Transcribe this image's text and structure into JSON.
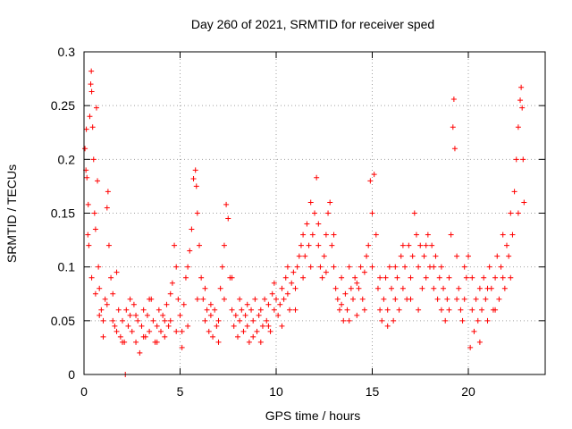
{
  "chart_data": {
    "type": "scatter",
    "title": "Day 260 of 2021, SRMTID for receiver sped",
    "xlabel": "GPS time / hours",
    "ylabel": "SRMTID / TECUs",
    "xlim": [
      0,
      24
    ],
    "ylim": [
      0,
      0.3
    ],
    "x_ticks": [
      0,
      5,
      10,
      15,
      20
    ],
    "x_tick_labels": [
      "0",
      "5",
      "10",
      "15",
      "20"
    ],
    "y_ticks": [
      0,
      0.05,
      0.1,
      0.15,
      0.2,
      0.25,
      0.3
    ],
    "y_tick_labels": [
      "0",
      "0.05",
      "0.1",
      "0.15",
      "0.2",
      "0.25",
      "0.3"
    ],
    "grid": true,
    "marker": "+",
    "series": [
      {
        "name": "SRMTID",
        "color": "#ff0000",
        "points": [
          [
            0.05,
            0.21
          ],
          [
            0.1,
            0.19
          ],
          [
            0.12,
            0.228
          ],
          [
            0.15,
            0.183
          ],
          [
            0.2,
            0.13
          ],
          [
            0.22,
            0.158
          ],
          [
            0.25,
            0.12
          ],
          [
            0.3,
            0.24
          ],
          [
            0.35,
            0.27
          ],
          [
            0.38,
            0.282
          ],
          [
            0.4,
            0.263
          ],
          [
            0.45,
            0.23
          ],
          [
            0.5,
            0.2
          ],
          [
            0.55,
            0.15
          ],
          [
            0.6,
            0.135
          ],
          [
            0.65,
            0.248
          ],
          [
            0.7,
            0.18
          ],
          [
            0.75,
            0.1
          ],
          [
            0.8,
            0.08
          ],
          [
            0.9,
            0.06
          ],
          [
            1.0,
            0.05
          ],
          [
            1.1,
            0.07
          ],
          [
            1.2,
            0.155
          ],
          [
            1.25,
            0.17
          ],
          [
            1.3,
            0.12
          ],
          [
            1.4,
            0.09
          ],
          [
            1.5,
            0.05
          ],
          [
            1.6,
            0.045
          ],
          [
            1.7,
            0.04
          ],
          [
            1.8,
            0.06
          ],
          [
            1.9,
            0.035
          ],
          [
            2.0,
            0.05
          ],
          [
            2.1,
            0.03
          ],
          [
            2.2,
            0.06
          ],
          [
            2.3,
            0.045
          ],
          [
            2.4,
            0.055
          ],
          [
            2.5,
            0.04
          ],
          [
            2.6,
            0.065
          ],
          [
            2.7,
            0.03
          ],
          [
            2.8,
            0.05
          ],
          [
            2.9,
            0.02
          ],
          [
            3.0,
            0.045
          ],
          [
            3.1,
            0.06
          ],
          [
            3.2,
            0.035
          ],
          [
            3.3,
            0.055
          ],
          [
            3.4,
            0.04
          ],
          [
            3.5,
            0.07
          ],
          [
            3.6,
            0.05
          ],
          [
            3.7,
            0.03
          ],
          [
            3.8,
            0.045
          ],
          [
            3.9,
            0.06
          ],
          [
            4.0,
            0.04
          ],
          [
            4.1,
            0.055
          ],
          [
            4.2,
            0.035
          ],
          [
            4.3,
            0.065
          ],
          [
            4.4,
            0.045
          ],
          [
            4.5,
            0.05
          ],
          [
            4.6,
            0.085
          ],
          [
            4.7,
            0.12
          ],
          [
            4.8,
            0.1
          ],
          [
            4.9,
            0.07
          ],
          [
            5.0,
            0.055
          ],
          [
            5.1,
            0.04
          ],
          [
            5.2,
            0.065
          ],
          [
            5.3,
            0.09
          ],
          [
            5.4,
            0.1
          ],
          [
            5.5,
            0.115
          ],
          [
            5.6,
            0.135
          ],
          [
            5.7,
            0.182
          ],
          [
            5.8,
            0.19
          ],
          [
            5.85,
            0.175
          ],
          [
            5.9,
            0.15
          ],
          [
            6.0,
            0.12
          ],
          [
            6.1,
            0.09
          ],
          [
            6.2,
            0.07
          ],
          [
            6.3,
            0.05
          ],
          [
            6.4,
            0.06
          ],
          [
            6.5,
            0.04
          ],
          [
            6.6,
            0.055
          ],
          [
            6.7,
            0.035
          ],
          [
            6.8,
            0.06
          ],
          [
            6.9,
            0.045
          ],
          [
            7.0,
            0.05
          ],
          [
            7.1,
            0.08
          ],
          [
            7.2,
            0.1
          ],
          [
            7.3,
            0.12
          ],
          [
            7.4,
            0.158
          ],
          [
            7.5,
            0.145
          ],
          [
            7.6,
            0.09
          ],
          [
            7.7,
            0.06
          ],
          [
            7.8,
            0.045
          ],
          [
            7.9,
            0.055
          ],
          [
            8.0,
            0.035
          ],
          [
            8.1,
            0.05
          ],
          [
            8.2,
            0.06
          ],
          [
            8.3,
            0.04
          ],
          [
            8.4,
            0.055
          ],
          [
            8.5,
            0.045
          ],
          [
            8.6,
            0.03
          ],
          [
            8.7,
            0.06
          ],
          [
            8.8,
            0.05
          ],
          [
            8.9,
            0.07
          ],
          [
            9.0,
            0.04
          ],
          [
            9.1,
            0.055
          ],
          [
            9.2,
            0.06
          ],
          [
            9.3,
            0.045
          ],
          [
            9.4,
            0.07
          ],
          [
            9.5,
            0.05
          ],
          [
            9.6,
            0.065
          ],
          [
            9.7,
            0.04
          ],
          [
            9.8,
            0.075
          ],
          [
            9.9,
            0.06
          ],
          [
            10.0,
            0.07
          ],
          [
            10.1,
            0.055
          ],
          [
            10.2,
            0.065
          ],
          [
            10.3,
            0.08
          ],
          [
            10.4,
            0.07
          ],
          [
            10.5,
            0.09
          ],
          [
            10.6,
            0.075
          ],
          [
            10.7,
            0.06
          ],
          [
            10.8,
            0.085
          ],
          [
            10.9,
            0.095
          ],
          [
            11.0,
            0.08
          ],
          [
            11.1,
            0.1
          ],
          [
            11.2,
            0.11
          ],
          [
            11.3,
            0.12
          ],
          [
            11.4,
            0.13
          ],
          [
            11.5,
            0.11
          ],
          [
            11.6,
            0.14
          ],
          [
            11.7,
            0.12
          ],
          [
            11.8,
            0.16
          ],
          [
            11.9,
            0.13
          ],
          [
            12.0,
            0.15
          ],
          [
            12.1,
            0.183
          ],
          [
            12.2,
            0.12
          ],
          [
            12.3,
            0.1
          ],
          [
            12.4,
            0.09
          ],
          [
            12.5,
            0.11
          ],
          [
            12.6,
            0.13
          ],
          [
            12.7,
            0.15
          ],
          [
            12.8,
            0.16
          ],
          [
            12.9,
            0.12
          ],
          [
            13.0,
            0.1
          ],
          [
            13.1,
            0.08
          ],
          [
            13.2,
            0.07
          ],
          [
            13.3,
            0.06
          ],
          [
            13.4,
            0.09
          ],
          [
            13.5,
            0.05
          ],
          [
            13.6,
            0.075
          ],
          [
            13.7,
            0.06
          ],
          [
            13.8,
            0.1
          ],
          [
            13.9,
            0.08
          ],
          [
            14.0,
            0.07
          ],
          [
            14.1,
            0.09
          ],
          [
            14.2,
            0.055
          ],
          [
            14.3,
            0.08
          ],
          [
            14.4,
            0.1
          ],
          [
            14.5,
            0.07
          ],
          [
            14.6,
            0.06
          ],
          [
            14.7,
            0.11
          ],
          [
            14.8,
            0.12
          ],
          [
            14.9,
            0.18
          ],
          [
            15.0,
            0.15
          ],
          [
            15.1,
            0.186
          ],
          [
            15.2,
            0.13
          ],
          [
            15.3,
            0.08
          ],
          [
            15.4,
            0.06
          ],
          [
            15.5,
            0.05
          ],
          [
            15.6,
            0.07
          ],
          [
            15.7,
            0.09
          ],
          [
            15.8,
            0.06
          ],
          [
            15.9,
            0.1
          ],
          [
            16.0,
            0.08
          ],
          [
            16.1,
            0.05
          ],
          [
            16.2,
            0.07
          ],
          [
            16.3,
            0.09
          ],
          [
            16.4,
            0.06
          ],
          [
            16.5,
            0.11
          ],
          [
            16.6,
            0.08
          ],
          [
            16.7,
            0.1
          ],
          [
            16.8,
            0.07
          ],
          [
            16.9,
            0.12
          ],
          [
            17.0,
            0.09
          ],
          [
            17.1,
            0.11
          ],
          [
            17.2,
            0.15
          ],
          [
            17.3,
            0.13
          ],
          [
            17.4,
            0.1
          ],
          [
            17.5,
            0.12
          ],
          [
            17.6,
            0.08
          ],
          [
            17.7,
            0.11
          ],
          [
            17.8,
            0.09
          ],
          [
            17.9,
            0.13
          ],
          [
            18.0,
            0.1
          ],
          [
            18.1,
            0.12
          ],
          [
            18.2,
            0.08
          ],
          [
            18.3,
            0.11
          ],
          [
            18.4,
            0.07
          ],
          [
            18.5,
            0.09
          ],
          [
            18.6,
            0.06
          ],
          [
            18.7,
            0.08
          ],
          [
            18.8,
            0.05
          ],
          [
            18.9,
            0.07
          ],
          [
            19.0,
            0.09
          ],
          [
            19.1,
            0.13
          ],
          [
            19.2,
            0.23
          ],
          [
            19.25,
            0.256
          ],
          [
            19.3,
            0.21
          ],
          [
            19.4,
            0.11
          ],
          [
            19.5,
            0.08
          ],
          [
            19.6,
            0.06
          ],
          [
            19.7,
            0.05
          ],
          [
            19.8,
            0.07
          ],
          [
            19.9,
            0.09
          ],
          [
            20.0,
            0.11
          ],
          [
            20.1,
            0.025
          ],
          [
            20.2,
            0.06
          ],
          [
            20.3,
            0.04
          ],
          [
            20.4,
            0.07
          ],
          [
            20.5,
            0.05
          ],
          [
            20.6,
            0.08
          ],
          [
            20.7,
            0.06
          ],
          [
            20.8,
            0.09
          ],
          [
            20.9,
            0.07
          ],
          [
            21.0,
            0.05
          ],
          [
            21.1,
            0.1
          ],
          [
            21.2,
            0.08
          ],
          [
            21.3,
            0.06
          ],
          [
            21.4,
            0.09
          ],
          [
            21.5,
            0.11
          ],
          [
            21.6,
            0.07
          ],
          [
            21.7,
            0.1
          ],
          [
            21.8,
            0.13
          ],
          [
            21.9,
            0.08
          ],
          [
            22.0,
            0.12
          ],
          [
            22.1,
            0.11
          ],
          [
            22.2,
            0.15
          ],
          [
            22.3,
            0.13
          ],
          [
            22.4,
            0.17
          ],
          [
            22.5,
            0.2
          ],
          [
            22.6,
            0.23
          ],
          [
            22.7,
            0.255
          ],
          [
            22.75,
            0.267
          ],
          [
            22.8,
            0.248
          ],
          [
            22.85,
            0.2
          ],
          [
            22.9,
            0.16
          ],
          [
            0.4,
            0.09
          ],
          [
            0.6,
            0.075
          ],
          [
            0.8,
            0.055
          ],
          [
            1.0,
            0.035
          ],
          [
            1.2,
            0.065
          ],
          [
            1.5,
            0.075
          ],
          [
            1.7,
            0.095
          ],
          [
            2.0,
            0.03
          ],
          [
            2.4,
            0.07
          ],
          [
            2.7,
            0.055
          ],
          [
            3.1,
            0.035
          ],
          [
            3.4,
            0.07
          ],
          [
            3.8,
            0.03
          ],
          [
            4.2,
            0.05
          ],
          [
            4.5,
            0.075
          ],
          [
            4.8,
            0.04
          ],
          [
            5.1,
            0.025
          ],
          [
            5.4,
            0.045
          ],
          [
            5.9,
            0.07
          ],
          [
            6.3,
            0.08
          ],
          [
            6.6,
            0.065
          ],
          [
            7.0,
            0.03
          ],
          [
            7.3,
            0.07
          ],
          [
            7.7,
            0.09
          ],
          [
            8.1,
            0.07
          ],
          [
            8.5,
            0.065
          ],
          [
            8.8,
            0.035
          ],
          [
            9.2,
            0.03
          ],
          [
            9.6,
            0.045
          ],
          [
            9.9,
            0.085
          ],
          [
            10.3,
            0.045
          ],
          [
            10.6,
            0.1
          ],
          [
            11.0,
            0.06
          ],
          [
            11.4,
            0.09
          ],
          [
            11.8,
            0.1
          ],
          [
            12.2,
            0.14
          ],
          [
            12.6,
            0.095
          ],
          [
            13.0,
            0.13
          ],
          [
            13.4,
            0.065
          ],
          [
            13.8,
            0.05
          ],
          [
            14.2,
            0.085
          ],
          [
            14.6,
            0.095
          ],
          [
            15.0,
            0.1
          ],
          [
            15.4,
            0.09
          ],
          [
            15.8,
            0.045
          ],
          [
            16.2,
            0.1
          ],
          [
            16.6,
            0.12
          ],
          [
            17.0,
            0.07
          ],
          [
            17.4,
            0.06
          ],
          [
            17.8,
            0.12
          ],
          [
            18.2,
            0.1
          ],
          [
            18.6,
            0.1
          ],
          [
            19.0,
            0.06
          ],
          [
            19.4,
            0.07
          ],
          [
            19.8,
            0.1
          ],
          [
            20.2,
            0.09
          ],
          [
            20.6,
            0.03
          ],
          [
            21.0,
            0.08
          ],
          [
            21.4,
            0.06
          ],
          [
            21.8,
            0.09
          ],
          [
            22.2,
            0.09
          ],
          [
            22.6,
            0.15
          ],
          [
            2.15,
            0.0
          ]
        ]
      }
    ]
  }
}
